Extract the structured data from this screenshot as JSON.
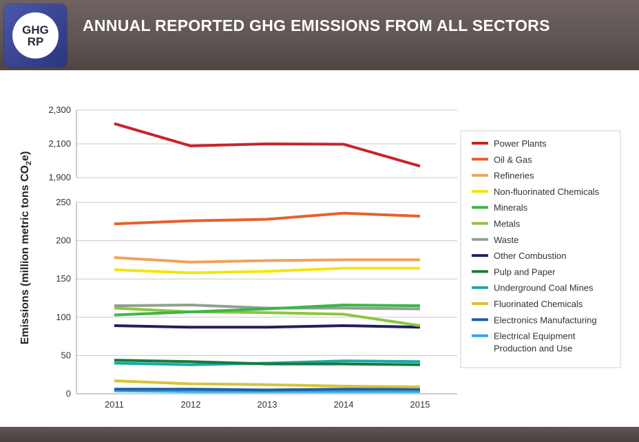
{
  "header": {
    "logo_line1": "GHG",
    "logo_line2": "RP",
    "title": "ANNUAL REPORTED GHG EMISSIONS FROM ALL SECTORS"
  },
  "chart_data": {
    "type": "line",
    "title": "ANNUAL REPORTED GHG EMISSIONS FROM ALL SECTORS",
    "xlabel": "",
    "ylabel": "Emissions (million metric tons CO2e)",
    "ylabel_main": "Emissions (million metric tons CO",
    "ylabel_sub": "2",
    "ylabel_tail": "e)",
    "x": [
      "2011",
      "2012",
      "2013",
      "2014",
      "2015"
    ],
    "y_axis_broken": true,
    "upper_ylim": [
      1900,
      2300
    ],
    "upper_yticks": [
      "1,900",
      "2,100",
      "2,300"
    ],
    "lower_ylim": [
      0,
      250
    ],
    "lower_yticks": [
      "0",
      "50",
      "100",
      "150",
      "200",
      "250"
    ],
    "grid": true,
    "legend_position": "right",
    "series": [
      {
        "name": "Power Plants",
        "color": "#c8232c",
        "values": [
          2220,
          2088,
          2100,
          2098,
          1968
        ]
      },
      {
        "name": "Oil & Gas",
        "color": "#e8602c",
        "values": [
          222,
          226,
          228,
          236,
          232
        ]
      },
      {
        "name": "Refineries",
        "color": "#f0a15a",
        "values": [
          178,
          172,
          174,
          175,
          175
        ]
      },
      {
        "name": "Non-fluorinated Chemicals",
        "color": "#f2e60c",
        "values": [
          162,
          158,
          160,
          164,
          164
        ]
      },
      {
        "name": "Minerals",
        "color": "#3db549",
        "values": [
          103,
          107,
          111,
          116,
          115
        ]
      },
      {
        "name": "Metals",
        "color": "#8dc63f",
        "values": [
          112,
          107,
          106,
          104,
          89
        ]
      },
      {
        "name": "Waste",
        "color": "#8fa08f",
        "values": [
          115,
          116,
          112,
          112,
          111
        ]
      },
      {
        "name": "Other Combustion",
        "color": "#1f1f5f",
        "values": [
          89,
          87,
          87,
          89,
          87
        ]
      },
      {
        "name": "Pulp and Paper",
        "color": "#1a7a3a",
        "values": [
          44,
          42,
          39,
          39,
          38
        ]
      },
      {
        "name": "Underground Coal Mines",
        "color": "#1aa9a9",
        "values": [
          40,
          38,
          40,
          43,
          42
        ]
      },
      {
        "name": "Fluorinated Chemicals",
        "color": "#d8c23a",
        "values": [
          17,
          13,
          12,
          10,
          9
        ]
      },
      {
        "name": "Electronics Manufacturing",
        "color": "#1f5fa5",
        "values": [
          6,
          6,
          5,
          6,
          6
        ]
      },
      {
        "name": "Electrical Equipment Production and Use",
        "color": "#2fa8e0",
        "values": [
          4,
          3,
          3,
          3,
          3
        ],
        "legend_lines": [
          "Electrical Equipment",
          "Production and Use"
        ]
      }
    ]
  }
}
